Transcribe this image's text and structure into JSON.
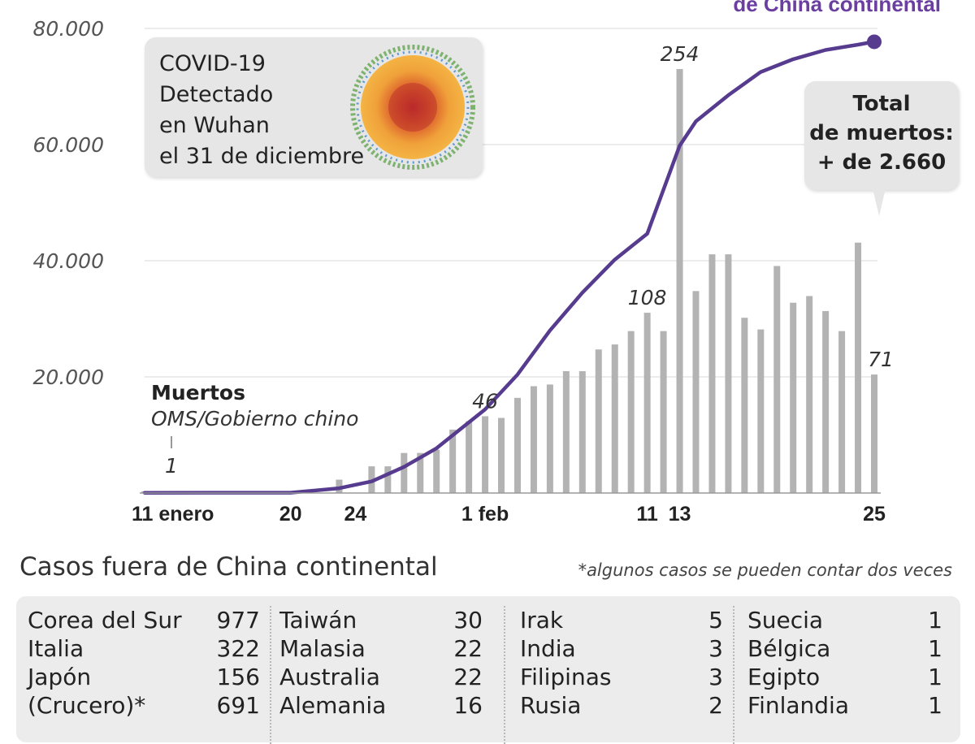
{
  "chart_data": {
    "type": "bar+line",
    "legend_top_right": "de China continental",
    "y_ticks": [
      "20.000",
      "40.000",
      "60.000",
      "80.000"
    ],
    "ylim": [
      0,
      80000
    ],
    "x_tick_labels": [
      {
        "day": 0,
        "label": "11 enero"
      },
      {
        "day": 9,
        "label": "20"
      },
      {
        "day": 13,
        "label": "24"
      },
      {
        "day": 21,
        "label": "1 feb"
      },
      {
        "day": 31,
        "label": "11"
      },
      {
        "day": 33,
        "label": "13"
      },
      {
        "day": 45,
        "label": "25"
      }
    ],
    "days": [
      0,
      1,
      2,
      3,
      4,
      5,
      6,
      7,
      8,
      9,
      10,
      11,
      12,
      13,
      14,
      15,
      16,
      17,
      18,
      19,
      20,
      21,
      22,
      23,
      24,
      25,
      26,
      27,
      28,
      29,
      30,
      31,
      32,
      33,
      34,
      35,
      36,
      37,
      38,
      39,
      40,
      41,
      42,
      43,
      44,
      45
    ],
    "deaths_series": {
      "label": "Muertos",
      "source": "OMS/Gobierno chino",
      "values": [
        1,
        0,
        0,
        0,
        0,
        0,
        0,
        0,
        0,
        1,
        0,
        0,
        8,
        0,
        16,
        16,
        24,
        24,
        26,
        38,
        43,
        46,
        45,
        57,
        64,
        65,
        73,
        73,
        86,
        89,
        97,
        108,
        97,
        254,
        121,
        143,
        143,
        105,
        98,
        136,
        114,
        118,
        109,
        97,
        150,
        71
      ],
      "max_value": 254,
      "labels": [
        {
          "day": 0,
          "text": "1"
        },
        {
          "day": 21,
          "text": "46"
        },
        {
          "day": 31,
          "text": "108"
        },
        {
          "day": 33,
          "text": "254"
        },
        {
          "day": 45,
          "text": "71"
        }
      ]
    },
    "cases_series": {
      "x": [
        0,
        9,
        12,
        14,
        16,
        18,
        21,
        23,
        25,
        27,
        29,
        31,
        33,
        34,
        36,
        38,
        40,
        42,
        44,
        45
      ],
      "values": [
        41,
        62,
        830,
        2000,
        4500,
        7700,
        14400,
        20400,
        28000,
        34500,
        40200,
        44650,
        59800,
        64000,
        68500,
        72500,
        74700,
        76300,
        77200,
        77700
      ]
    }
  },
  "covid_callout": {
    "lines": [
      "COVID-19",
      "Detectado",
      "en Wuhan",
      "el 31 de diciembre"
    ]
  },
  "total_callout": {
    "lines": [
      "Total",
      "de muertos:",
      "+ de 2.660"
    ]
  },
  "outside_cases": {
    "title": "Casos fuera de China continental",
    "footnote": "*algunos casos se pueden contar dos veces",
    "columns": [
      [
        {
          "name": "Corea del Sur",
          "value": "977"
        },
        {
          "name": "Italia",
          "value": "322"
        },
        {
          "name": "Japón",
          "value": "156"
        },
        {
          "name": "(Crucero)*",
          "value": "691"
        }
      ],
      [
        {
          "name": "Taiwán",
          "value": "30"
        },
        {
          "name": "Malasia",
          "value": "22"
        },
        {
          "name": "Australia",
          "value": "22"
        },
        {
          "name": "Alemania",
          "value": "16"
        }
      ],
      [
        {
          "name": "Irak",
          "value": "5"
        },
        {
          "name": "India",
          "value": "3"
        },
        {
          "name": "Filipinas",
          "value": "3"
        },
        {
          "name": "Rusia",
          "value": "2"
        }
      ],
      [
        {
          "name": "Suecia",
          "value": "1"
        },
        {
          "name": "Bélgica",
          "value": "1"
        },
        {
          "name": "Egipto",
          "value": "1"
        },
        {
          "name": "Finlandia",
          "value": "1"
        }
      ]
    ]
  },
  "colors": {
    "bar": "#b3b3b3",
    "line": "#563b8f",
    "legend": "#6a3fa0",
    "callout_bg": "#e6e6e6",
    "table_bg": "#ececec",
    "grid": "#d9d9d9"
  }
}
